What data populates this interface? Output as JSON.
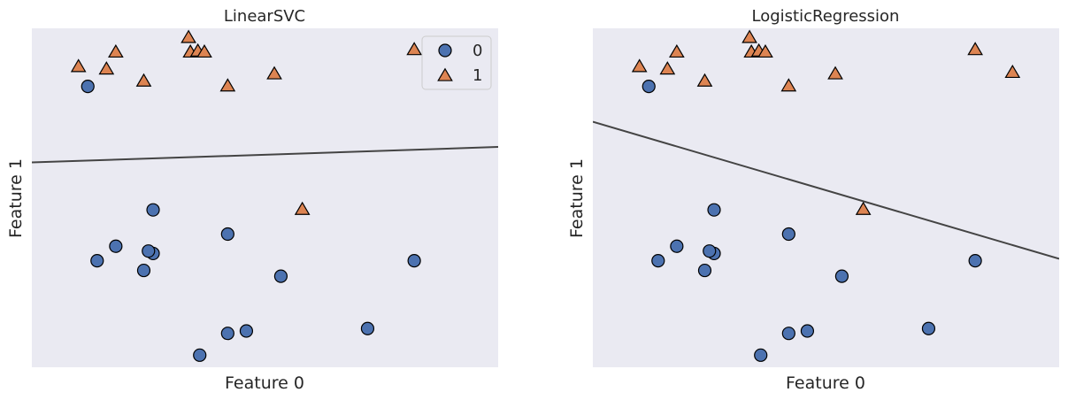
{
  "colors": {
    "background": "#eaeaf2",
    "class0": "#4c72b0",
    "class1": "#dd8452",
    "boundary": "#444444",
    "marker_edge": "#000000"
  },
  "chart_data": [
    {
      "type": "scatter",
      "title": "LinearSVC",
      "xlabel": "Feature 0",
      "ylabel": "Feature 1",
      "xlim": [
        7.3,
        12.3
      ],
      "ylim": [
        -1.2,
        5.8
      ],
      "grid": false,
      "legend": {
        "placement": "top-right",
        "entries": [
          "0",
          "1"
        ]
      },
      "series": [
        {
          "name": "0",
          "marker": "circle",
          "points": [
            [
              7.9,
              4.6
            ],
            [
              8.2,
              1.3
            ],
            [
              8.0,
              1.0
            ],
            [
              8.5,
              0.8
            ],
            [
              8.6,
              1.15
            ],
            [
              8.55,
              1.2
            ],
            [
              9.1,
              -0.95
            ],
            [
              8.6,
              2.05
            ],
            [
              9.4,
              1.55
            ],
            [
              9.4,
              -0.5
            ],
            [
              9.6,
              -0.45
            ],
            [
              9.97,
              0.68
            ],
            [
              10.9,
              -0.4
            ],
            [
              11.4,
              1.0
            ]
          ]
        },
        {
          "name": "1",
          "marker": "triangle",
          "points": [
            [
              7.8,
              5.0
            ],
            [
              8.1,
              4.95
            ],
            [
              8.2,
              5.3
            ],
            [
              8.5,
              4.7
            ],
            [
              8.98,
              5.6
            ],
            [
              9.0,
              5.3
            ],
            [
              9.08,
              5.32
            ],
            [
              9.15,
              5.3
            ],
            [
              9.4,
              4.6
            ],
            [
              9.9,
              4.85
            ],
            [
              10.2,
              2.05
            ],
            [
              11.4,
              5.35
            ],
            [
              11.8,
              4.88
            ]
          ]
        }
      ],
      "decision_boundary": [
        [
          7.3,
          3.03
        ],
        [
          12.3,
          3.35
        ]
      ]
    },
    {
      "type": "scatter",
      "title": "LogisticRegression",
      "xlabel": "Feature 0",
      "ylabel": "Feature 1",
      "xlim": [
        7.3,
        12.3
      ],
      "ylim": [
        -1.2,
        5.8
      ],
      "grid": false,
      "series": [
        {
          "name": "0",
          "marker": "circle",
          "points": [
            [
              7.9,
              4.6
            ],
            [
              8.2,
              1.3
            ],
            [
              8.0,
              1.0
            ],
            [
              8.5,
              0.8
            ],
            [
              8.6,
              1.15
            ],
            [
              8.55,
              1.2
            ],
            [
              9.1,
              -0.95
            ],
            [
              8.6,
              2.05
            ],
            [
              9.4,
              1.55
            ],
            [
              9.4,
              -0.5
            ],
            [
              9.6,
              -0.45
            ],
            [
              9.97,
              0.68
            ],
            [
              10.9,
              -0.4
            ],
            [
              11.4,
              1.0
            ]
          ]
        },
        {
          "name": "1",
          "marker": "triangle",
          "points": [
            [
              7.8,
              5.0
            ],
            [
              8.1,
              4.95
            ],
            [
              8.2,
              5.3
            ],
            [
              8.5,
              4.7
            ],
            [
              8.98,
              5.6
            ],
            [
              9.0,
              5.3
            ],
            [
              9.08,
              5.32
            ],
            [
              9.15,
              5.3
            ],
            [
              9.4,
              4.6
            ],
            [
              9.9,
              4.85
            ],
            [
              10.2,
              2.05
            ],
            [
              11.4,
              5.35
            ],
            [
              11.8,
              4.88
            ]
          ]
        }
      ],
      "decision_boundary": [
        [
          7.3,
          3.87
        ],
        [
          12.3,
          1.04
        ]
      ]
    }
  ]
}
